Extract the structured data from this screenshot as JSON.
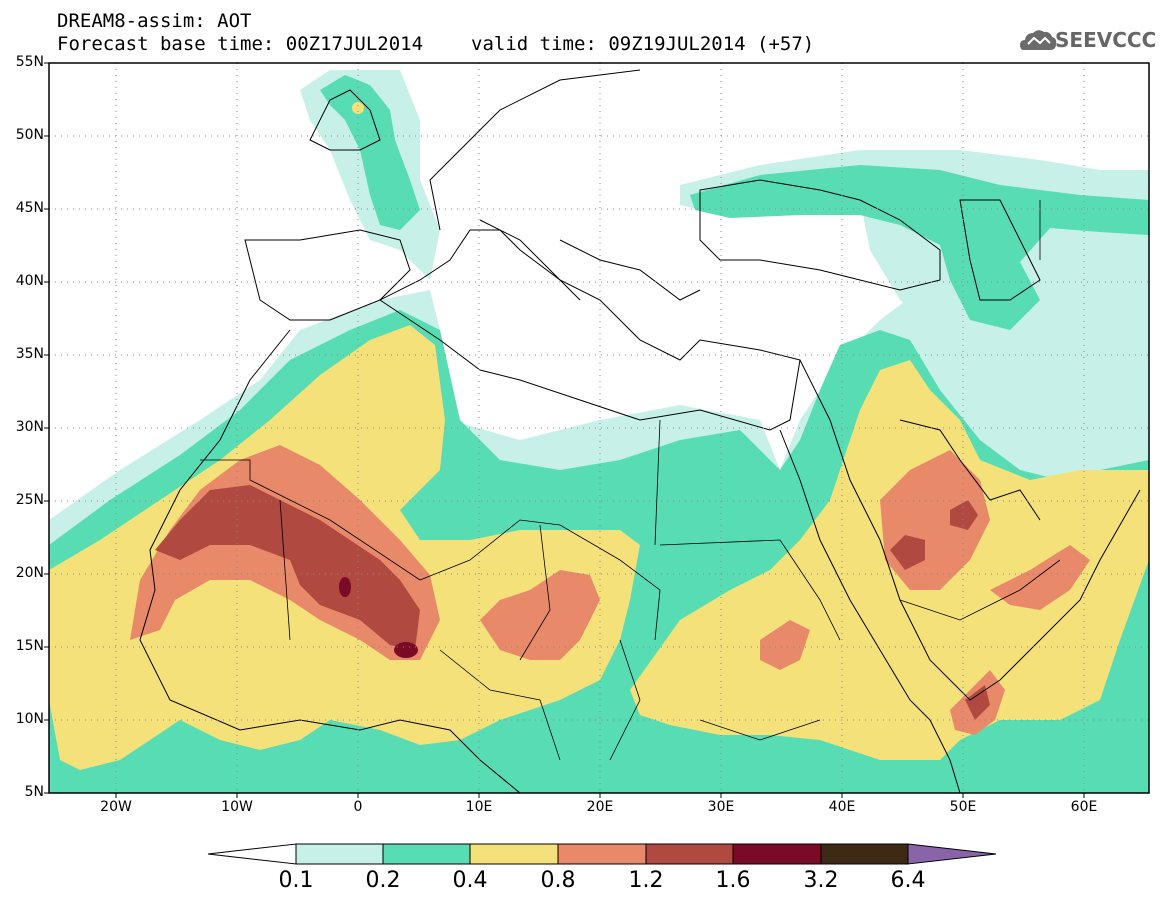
{
  "title": {
    "line1": "DREAM8-assim: AOT",
    "base_time": "Forecast base time: 00Z17JUL2014",
    "valid_time": "valid time: 09Z19JUL2014 (+57)"
  },
  "logo": {
    "text": "SEEVCCC",
    "icon": "cloud-icon"
  },
  "map": {
    "lat_range": [
      5,
      55
    ],
    "lon_range": [
      -25,
      65
    ],
    "grid": "dotted",
    "lat_ticks": [
      "55N",
      "50N",
      "45N",
      "40N",
      "35N",
      "30N",
      "25N",
      "20N",
      "15N",
      "10N",
      "5N"
    ],
    "lon_ticks": [
      "20W",
      "10W",
      "0",
      "10E",
      "20E",
      "30E",
      "40E",
      "50E",
      "60E"
    ]
  },
  "colorbar": {
    "labels": [
      "0.1",
      "0.2",
      "0.4",
      "0.8",
      "1.2",
      "1.6",
      "3.2",
      "6.4"
    ],
    "colors": [
      "#c6f0e8",
      "#57dcb4",
      "#f4e17a",
      "#e8896a",
      "#b0493f",
      "#7a0a25",
      "#3e2a14",
      "#8a64a8"
    ],
    "under_color": "#ffffff"
  }
}
